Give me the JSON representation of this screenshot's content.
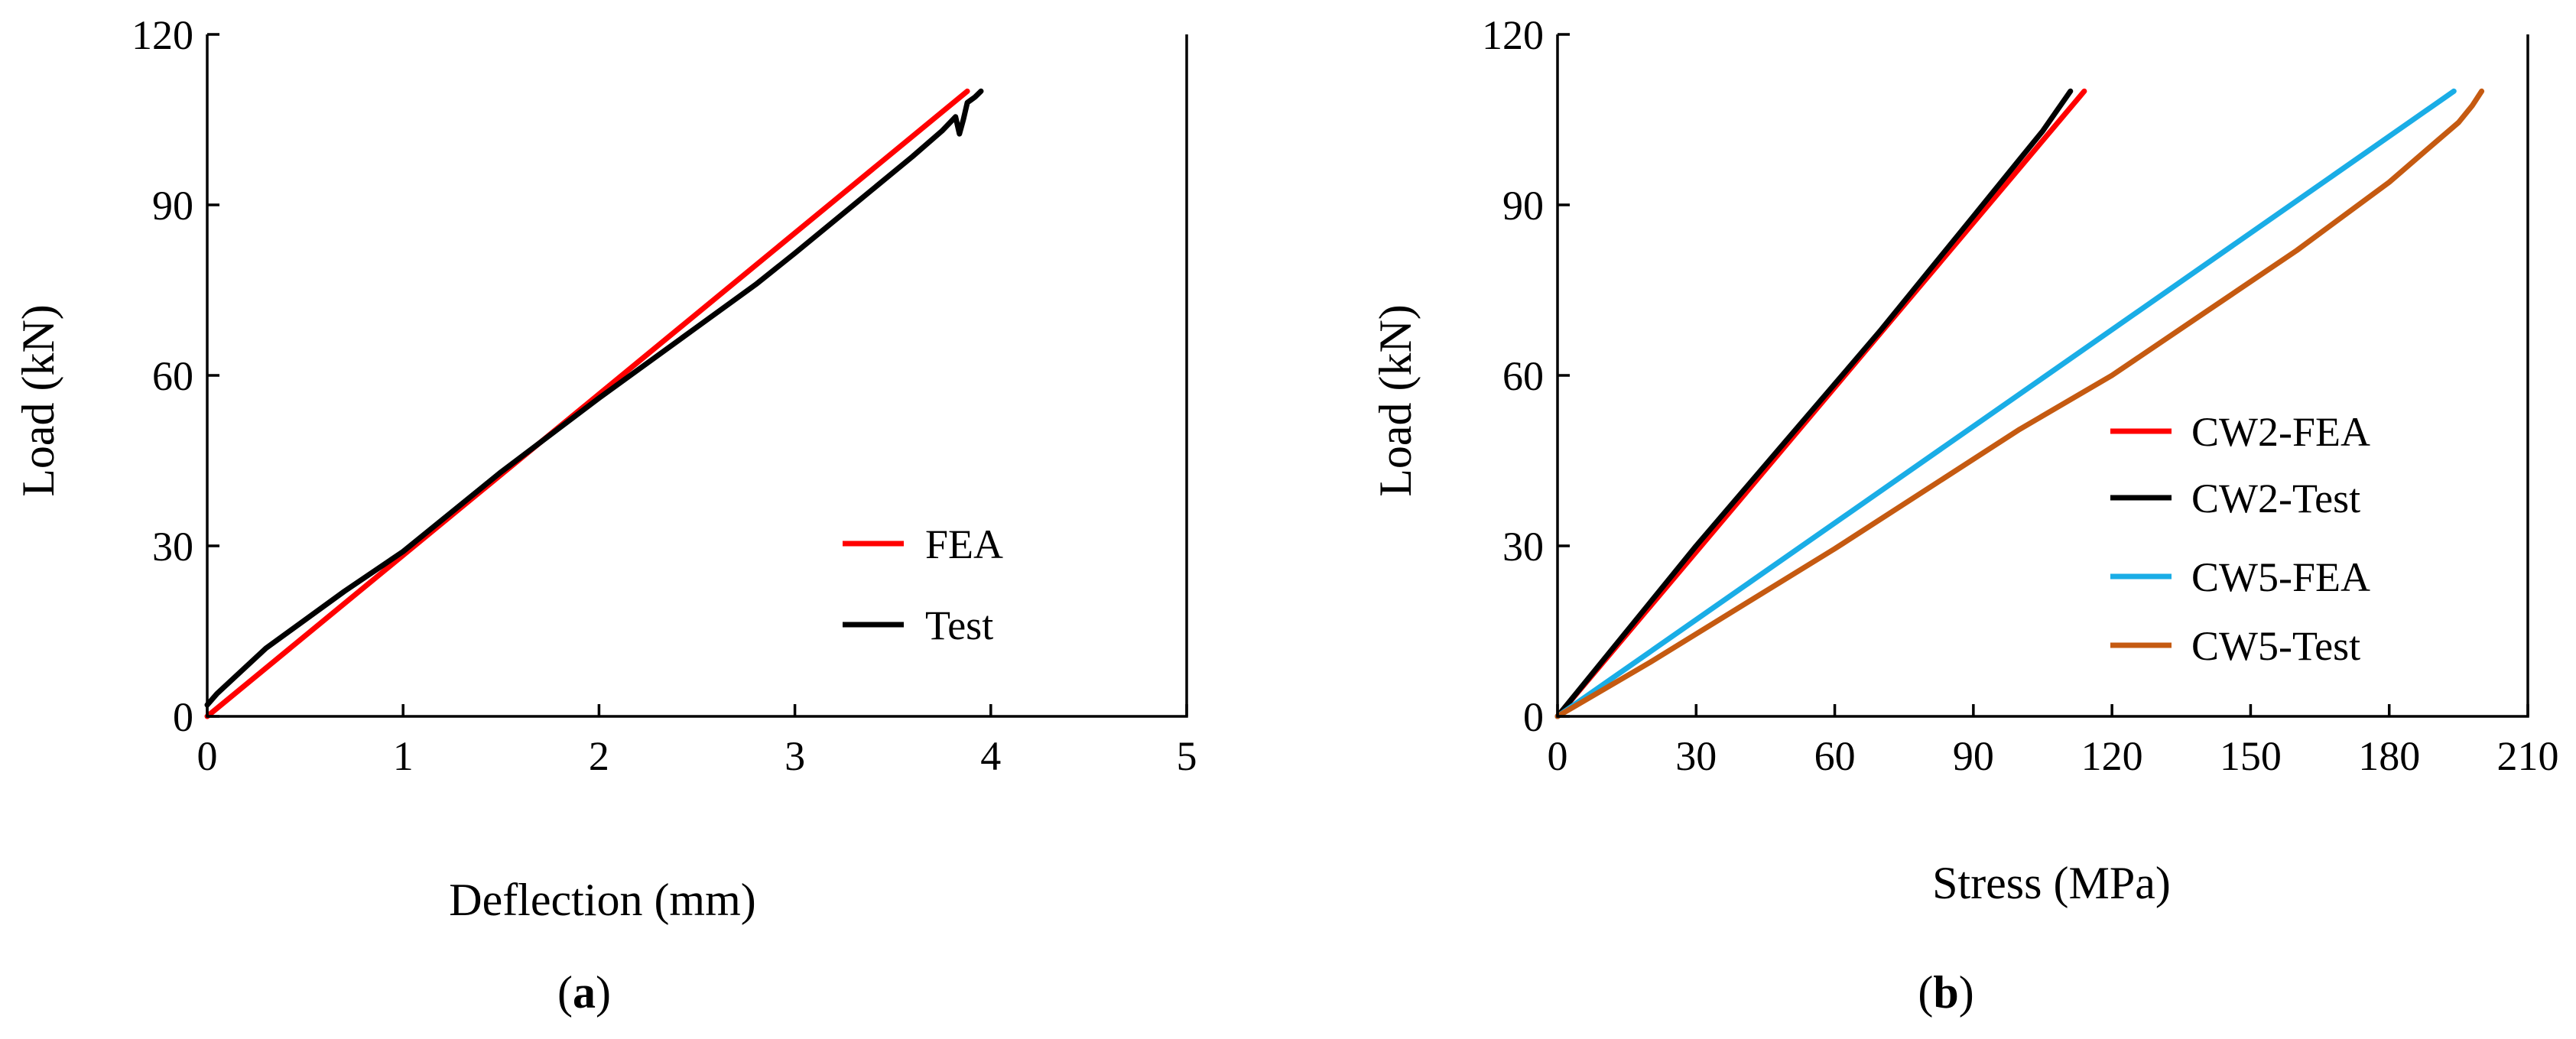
{
  "chart_data": [
    {
      "id": "a",
      "type": "line",
      "panel_label": "a",
      "xlabel": "Deflection (mm)",
      "ylabel": "Load (kN)",
      "xlim": [
        0,
        5
      ],
      "ylim": [
        0,
        120
      ],
      "xticks": [
        0,
        1,
        2,
        3,
        4,
        5
      ],
      "yticks": [
        0,
        30,
        60,
        90,
        120
      ],
      "grid": false,
      "legend_position": "bottom-right",
      "series": [
        {
          "name": "FEA",
          "color": "#ff0000",
          "x": [
            0,
            3.88
          ],
          "y": [
            0,
            110
          ]
        },
        {
          "name": "Test",
          "color": "#000000",
          "x": [
            0,
            0.05,
            0.3,
            0.7,
            1.0,
            1.5,
            2.0,
            2.5,
            2.8,
            3.0,
            3.3,
            3.6,
            3.75,
            3.82,
            3.84,
            3.86,
            3.88,
            3.92,
            3.95
          ],
          "y": [
            2,
            4,
            12,
            22,
            29,
            43,
            56,
            68.5,
            76,
            81.5,
            90,
            98.5,
            103,
            105.5,
            102.5,
            105,
            108,
            109,
            110
          ]
        }
      ]
    },
    {
      "id": "b",
      "type": "line",
      "panel_label": "b",
      "xlabel": "Stress (MPa)",
      "ylabel": "Load (kN)",
      "xlim": [
        0,
        210
      ],
      "ylim": [
        0,
        120
      ],
      "xticks": [
        0,
        30,
        60,
        90,
        120,
        150,
        180,
        210
      ],
      "yticks": [
        0,
        30,
        60,
        90,
        120
      ],
      "grid": false,
      "legend_position": "right-middle",
      "series": [
        {
          "name": "CW2-FEA",
          "color": "#ff0000",
          "x": [
            0,
            114
          ],
          "y": [
            0,
            110
          ]
        },
        {
          "name": "CW2-Test",
          "color": "#000000",
          "x": [
            0,
            10,
            20,
            30,
            40,
            50,
            60,
            70,
            80,
            90,
            100,
            105,
            108,
            111
          ],
          "y": [
            0,
            10,
            20,
            30,
            39.5,
            49,
            58.5,
            68,
            78,
            88,
            98,
            103,
            106.5,
            110
          ]
        },
        {
          "name": "CW5-FEA",
          "color": "#1aade6",
          "x": [
            0,
            194
          ],
          "y": [
            0,
            110
          ]
        },
        {
          "name": "CW5-Test",
          "color": "#c55a11",
          "x": [
            0,
            20,
            40,
            60,
            80,
            100,
            120,
            140,
            160,
            180,
            190,
            195,
            198,
            200
          ],
          "y": [
            0,
            9.5,
            19.5,
            29.5,
            40,
            50.5,
            60,
            71,
            82,
            94,
            101,
            104.5,
            107.5,
            110
          ]
        }
      ]
    }
  ]
}
